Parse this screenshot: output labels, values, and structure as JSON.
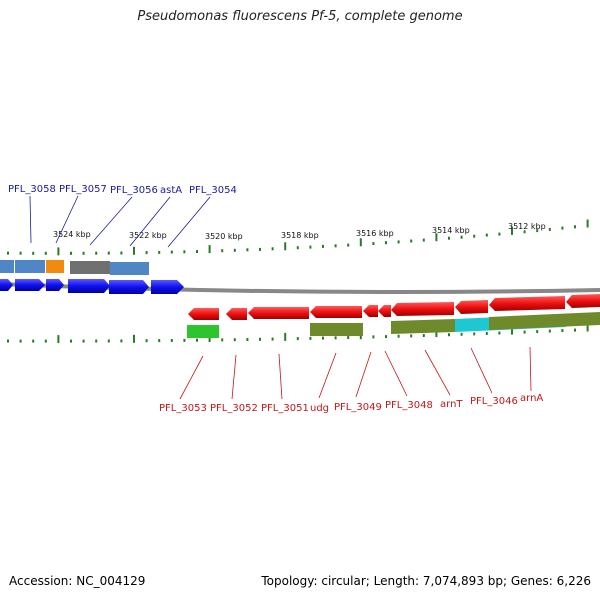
{
  "title": "Pseudomonas fluorescens Pf-5, complete genome",
  "footer": {
    "accession": "Accession: NC_004129",
    "topology": "Topology: circular; Length: 7,074,893 bp; Genes: 6,226"
  },
  "colors": {
    "forward_cds": "#1010ee",
    "reverse_cds": "#ee1010",
    "gc_blue": "#4f86c6",
    "gc_orange": "#f08a10",
    "gc_gray": "#707070",
    "gc_olive": "#6e8a2a",
    "gc_green": "#2ec42e",
    "gc_cyan": "#1ec8d2",
    "ticks": "#2a7a2a",
    "backbone": "#888888",
    "top_labels": "#1a1aa0",
    "bottom_labels": "#c21818"
  },
  "kbp_ticks": [
    "3524 kbp",
    "3522 kbp",
    "3520 kbp",
    "3518 kbp",
    "3516 kbp",
    "3514 kbp",
    "3512 kbp"
  ],
  "top_gene_labels": [
    "PFL_3058",
    "PFL_3057",
    "PFL_3056",
    "astA",
    "PFL_3054"
  ],
  "bottom_gene_labels": [
    "PFL_3053",
    "PFL_3052",
    "PFL_3051",
    "udg",
    "PFL_3049",
    "PFL_3048",
    "arnT",
    "PFL_3046",
    "arnA"
  ]
}
